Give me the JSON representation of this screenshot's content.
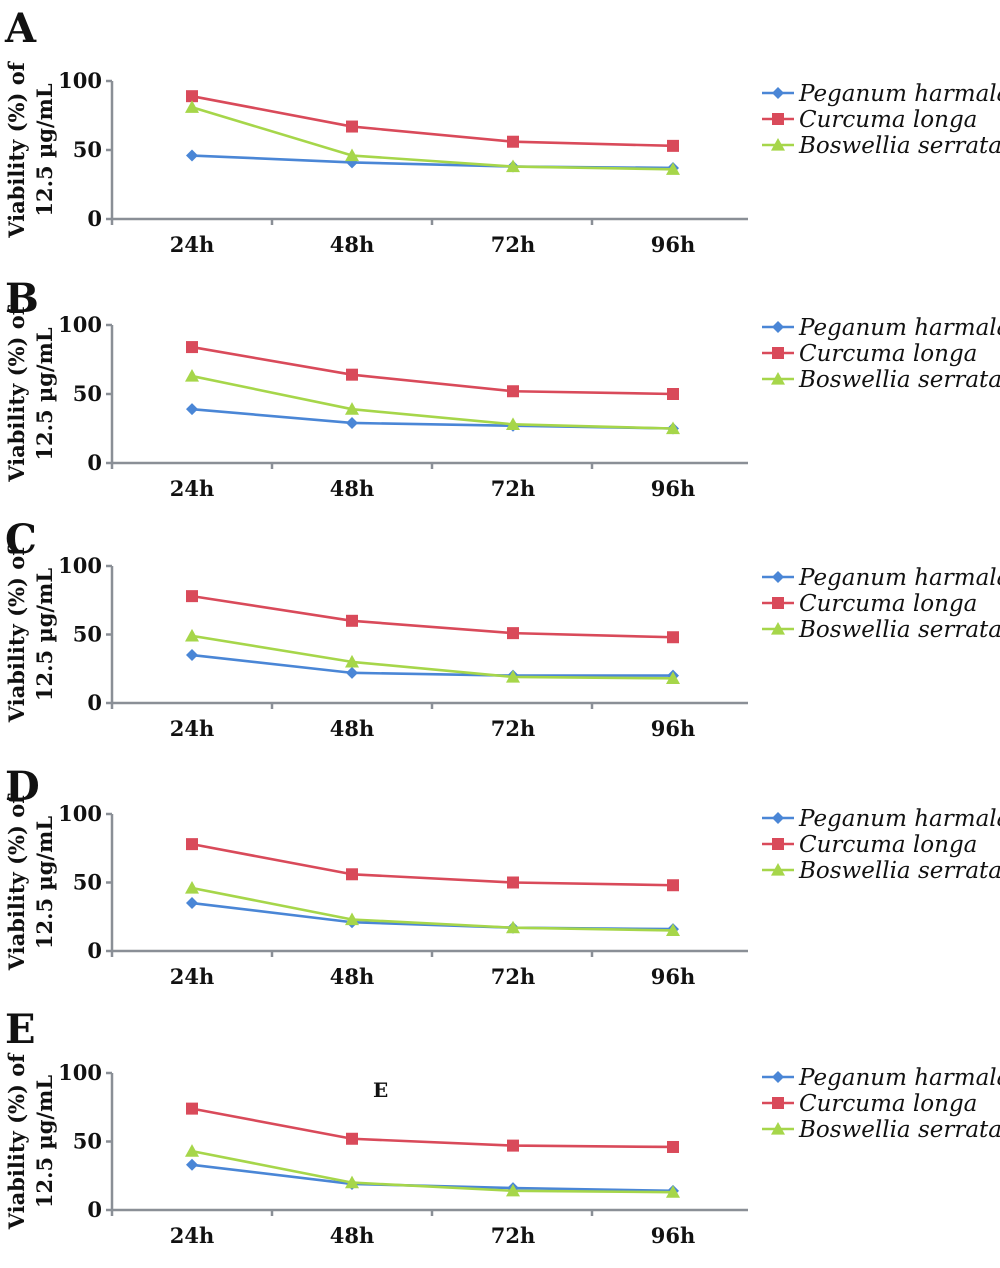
{
  "chart_data": [
    {
      "type": "line",
      "panel": "A",
      "categories": [
        "24h",
        "48h",
        "72h",
        "96h"
      ],
      "ylabel": [
        "Viability (%) of",
        "12.5 µg/mL"
      ],
      "ylim": [
        0,
        100
      ],
      "yticks": [
        "0",
        "50",
        "100"
      ],
      "legend_position": "right",
      "annotation": "",
      "series": [
        {
          "name": "Peganum harmala",
          "color": "#4a86d6",
          "marker": "diamond",
          "values": [
            46,
            41,
            38,
            37
          ]
        },
        {
          "name": "Curcuma longa",
          "color": "#d94a5a",
          "marker": "square",
          "values": [
            89,
            67,
            56,
            53
          ]
        },
        {
          "name": "Boswellia serrata",
          "color": "#a6d64a",
          "marker": "triangle",
          "values": [
            81,
            46,
            38,
            36
          ]
        }
      ]
    },
    {
      "type": "line",
      "panel": "B",
      "categories": [
        "24h",
        "48h",
        "72h",
        "96h"
      ],
      "ylabel": [
        "Viability (%) of",
        "12.5 µg/mL"
      ],
      "ylim": [
        0,
        100
      ],
      "yticks": [
        "0",
        "50",
        "100"
      ],
      "legend_position": "right",
      "annotation": "",
      "series": [
        {
          "name": "Peganum harmala",
          "color": "#4a86d6",
          "marker": "diamond",
          "values": [
            39,
            29,
            27,
            25
          ]
        },
        {
          "name": "Curcuma longa",
          "color": "#d94a5a",
          "marker": "square",
          "values": [
            84,
            64,
            52,
            50
          ]
        },
        {
          "name": "Boswellia serrata",
          "color": "#a6d64a",
          "marker": "triangle",
          "values": [
            63,
            39,
            28,
            25
          ]
        }
      ]
    },
    {
      "type": "line",
      "panel": "C",
      "categories": [
        "24h",
        "48h",
        "72h",
        "96h"
      ],
      "ylabel": [
        "Viability (%) of",
        "12.5 µg/mL"
      ],
      "ylim": [
        0,
        100
      ],
      "yticks": [
        "0",
        "50",
        "100"
      ],
      "legend_position": "right",
      "annotation": "",
      "series": [
        {
          "name": "Peganum harmala",
          "color": "#4a86d6",
          "marker": "diamond",
          "values": [
            35,
            22,
            20,
            20
          ]
        },
        {
          "name": "Curcuma longa",
          "color": "#d94a5a",
          "marker": "square",
          "values": [
            78,
            60,
            51,
            48
          ]
        },
        {
          "name": "Boswellia serrata",
          "color": "#a6d64a",
          "marker": "triangle",
          "values": [
            49,
            30,
            19,
            18
          ]
        }
      ]
    },
    {
      "type": "line",
      "panel": "D",
      "categories": [
        "24h",
        "48h",
        "72h",
        "96h"
      ],
      "ylabel": [
        "Viability (%) of",
        "12.5 µg/mL"
      ],
      "ylim": [
        0,
        100
      ],
      "yticks": [
        "0",
        "50",
        "100"
      ],
      "legend_position": "right",
      "annotation": "",
      "series": [
        {
          "name": "Peganum harmala",
          "color": "#4a86d6",
          "marker": "diamond",
          "values": [
            35,
            21,
            17,
            16
          ]
        },
        {
          "name": "Curcuma longa",
          "color": "#d94a5a",
          "marker": "square",
          "values": [
            78,
            56,
            50,
            48
          ]
        },
        {
          "name": "Boswellia serrata",
          "color": "#a6d64a",
          "marker": "triangle",
          "values": [
            46,
            23,
            17,
            15
          ]
        }
      ]
    },
    {
      "type": "line",
      "panel": "E",
      "categories": [
        "24h",
        "48h",
        "72h",
        "96h"
      ],
      "ylabel": [
        "Viability (%) of",
        "12.5 µg/mL"
      ],
      "ylim": [
        0,
        100
      ],
      "yticks": [
        "0",
        "50",
        "100"
      ],
      "legend_position": "right",
      "annotation": "E",
      "series": [
        {
          "name": "Peganum harmala",
          "color": "#4a86d6",
          "marker": "diamond",
          "values": [
            33,
            19,
            16,
            14
          ]
        },
        {
          "name": "Curcuma longa",
          "color": "#d94a5a",
          "marker": "square",
          "values": [
            74,
            52,
            47,
            46
          ]
        },
        {
          "name": "Boswellia serrata",
          "color": "#a6d64a",
          "marker": "triangle",
          "values": [
            43,
            20,
            14,
            13
          ]
        }
      ]
    }
  ]
}
